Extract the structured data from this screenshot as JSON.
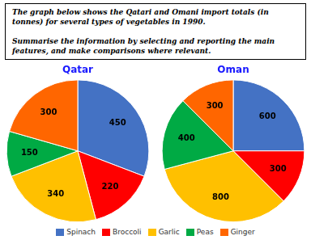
{
  "title": "The graph below shows the Qatari and Omani import totals (in\ntonnes) for several types of vegetables in 1990.\n\nSummarise the information by selecting and reporting the main\nfeatures, and make comparisons where relevant.",
  "legend": "bottom",
  "chart_data": [
    {
      "type": "pie",
      "title": "Qatar",
      "categories": [
        "Spinach",
        "Broccoli",
        "Garlic",
        "Peas",
        "Ginger"
      ],
      "values": [
        450,
        220,
        340,
        150,
        300
      ],
      "colors": [
        "#4472C4",
        "#FF0000",
        "#FFC000",
        "#00AA44",
        "#FF6600"
      ],
      "data_labels": true
    },
    {
      "type": "pie",
      "title": "Oman",
      "categories": [
        "Spinach",
        "Broccoli",
        "Garlic",
        "Peas",
        "Ginger"
      ],
      "values": [
        600,
        300,
        800,
        400,
        300
      ],
      "colors": [
        "#4472C4",
        "#FF0000",
        "#FFC000",
        "#00AA44",
        "#FF6600"
      ],
      "data_labels": true
    }
  ]
}
